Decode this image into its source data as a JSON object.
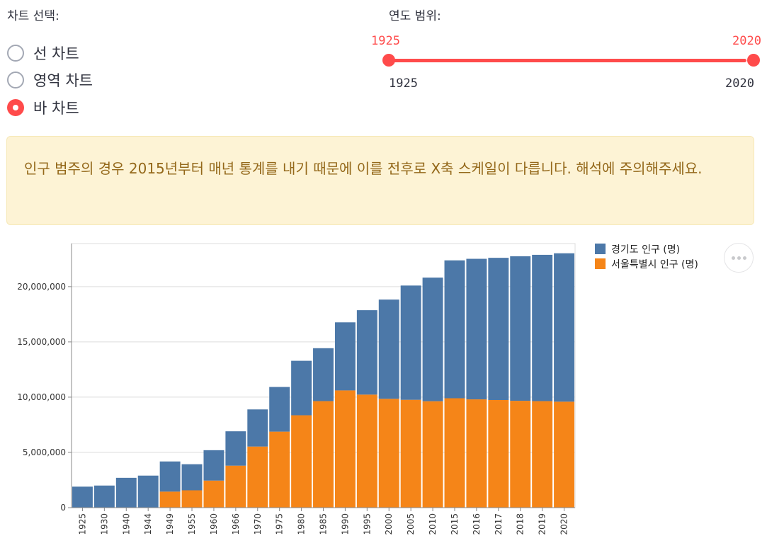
{
  "chart_selector": {
    "label": "차트 선택:",
    "options": [
      "선 차트",
      "영역 차트",
      "바 차트"
    ],
    "selected_index": 2
  },
  "year_range": {
    "label": "연도 범위:",
    "low": 1925,
    "high": 2020,
    "min": 1925,
    "max": 2020,
    "accent": "#ff4b4b"
  },
  "notice": {
    "text": "인구 범주의 경우 2015년부터 매년 통계를 내기 때문에 이를 전후로 X축 스케일이 다릅니다. 해석에 주의해주세요."
  },
  "chart_data": {
    "type": "bar",
    "stacked": true,
    "categories": [
      "1925",
      "1930",
      "1940",
      "1944",
      "1949",
      "1955",
      "1960",
      "1966",
      "1970",
      "1975",
      "1980",
      "1985",
      "1990",
      "1995",
      "2000",
      "2005",
      "2010",
      "2015",
      "2016",
      "2017",
      "2018",
      "2019",
      "2020"
    ],
    "series": [
      {
        "name": "서울특별시 인구 (명)",
        "color": "#f58518",
        "values": [
          0,
          0,
          0,
          0,
          1450000,
          1570000,
          2450000,
          3800000,
          5530000,
          6880000,
          8360000,
          9640000,
          10610000,
          10230000,
          9850000,
          9760000,
          9630000,
          9900000,
          9800000,
          9740000,
          9670000,
          9640000,
          9590000
        ]
      },
      {
        "name": "경기도 인구 (명)",
        "color": "#4c78a8",
        "values": [
          1900000,
          2000000,
          2700000,
          2900000,
          2730000,
          2360000,
          2750000,
          3110000,
          3360000,
          4040000,
          4930000,
          4790000,
          6160000,
          7640000,
          8980000,
          10340000,
          11190000,
          12480000,
          12720000,
          12870000,
          13080000,
          13240000,
          13430000
        ]
      }
    ],
    "y_ticks": [
      0,
      5000000,
      10000000,
      15000000,
      20000000
    ],
    "y_tick_labels": [
      "0",
      "5,000,000",
      "10,000,000",
      "15,000,000",
      "20,000,000"
    ],
    "ylim": [
      0,
      23900000
    ],
    "grid": true,
    "legend_position": "top-right",
    "legend_order": [
      "경기도 인구 (명)",
      "서울특별시 인구 (명)"
    ]
  },
  "toolbar": {
    "more_icon": "more-horizontal-icon"
  }
}
